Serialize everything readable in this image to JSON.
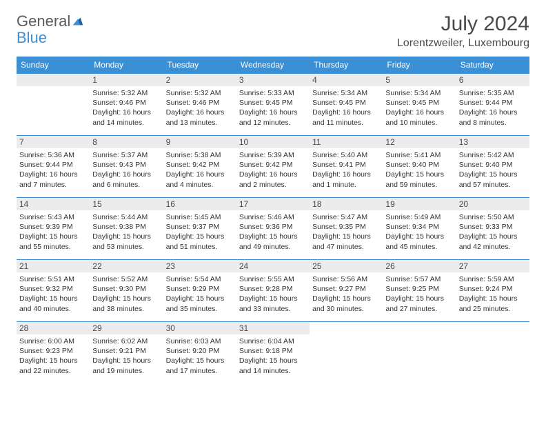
{
  "logo": {
    "text1": "General",
    "text2": "Blue"
  },
  "title": "July 2024",
  "location": "Lorentzweiler, Luxembourg",
  "colors": {
    "header_bg": "#3b8fd4",
    "header_text": "#ffffff",
    "daynum_bg": "#ececec",
    "border": "#3b8fd4",
    "body_text": "#333333",
    "title_text": "#4a4a4a"
  },
  "day_headers": [
    "Sunday",
    "Monday",
    "Tuesday",
    "Wednesday",
    "Thursday",
    "Friday",
    "Saturday"
  ],
  "weeks": [
    [
      {
        "num": "",
        "sunrise": "",
        "sunset": "",
        "daylight": ""
      },
      {
        "num": "1",
        "sunrise": "Sunrise: 5:32 AM",
        "sunset": "Sunset: 9:46 PM",
        "daylight": "Daylight: 16 hours and 14 minutes."
      },
      {
        "num": "2",
        "sunrise": "Sunrise: 5:32 AM",
        "sunset": "Sunset: 9:46 PM",
        "daylight": "Daylight: 16 hours and 13 minutes."
      },
      {
        "num": "3",
        "sunrise": "Sunrise: 5:33 AM",
        "sunset": "Sunset: 9:45 PM",
        "daylight": "Daylight: 16 hours and 12 minutes."
      },
      {
        "num": "4",
        "sunrise": "Sunrise: 5:34 AM",
        "sunset": "Sunset: 9:45 PM",
        "daylight": "Daylight: 16 hours and 11 minutes."
      },
      {
        "num": "5",
        "sunrise": "Sunrise: 5:34 AM",
        "sunset": "Sunset: 9:45 PM",
        "daylight": "Daylight: 16 hours and 10 minutes."
      },
      {
        "num": "6",
        "sunrise": "Sunrise: 5:35 AM",
        "sunset": "Sunset: 9:44 PM",
        "daylight": "Daylight: 16 hours and 8 minutes."
      }
    ],
    [
      {
        "num": "7",
        "sunrise": "Sunrise: 5:36 AM",
        "sunset": "Sunset: 9:44 PM",
        "daylight": "Daylight: 16 hours and 7 minutes."
      },
      {
        "num": "8",
        "sunrise": "Sunrise: 5:37 AM",
        "sunset": "Sunset: 9:43 PM",
        "daylight": "Daylight: 16 hours and 6 minutes."
      },
      {
        "num": "9",
        "sunrise": "Sunrise: 5:38 AM",
        "sunset": "Sunset: 9:42 PM",
        "daylight": "Daylight: 16 hours and 4 minutes."
      },
      {
        "num": "10",
        "sunrise": "Sunrise: 5:39 AM",
        "sunset": "Sunset: 9:42 PM",
        "daylight": "Daylight: 16 hours and 2 minutes."
      },
      {
        "num": "11",
        "sunrise": "Sunrise: 5:40 AM",
        "sunset": "Sunset: 9:41 PM",
        "daylight": "Daylight: 16 hours and 1 minute."
      },
      {
        "num": "12",
        "sunrise": "Sunrise: 5:41 AM",
        "sunset": "Sunset: 9:40 PM",
        "daylight": "Daylight: 15 hours and 59 minutes."
      },
      {
        "num": "13",
        "sunrise": "Sunrise: 5:42 AM",
        "sunset": "Sunset: 9:40 PM",
        "daylight": "Daylight: 15 hours and 57 minutes."
      }
    ],
    [
      {
        "num": "14",
        "sunrise": "Sunrise: 5:43 AM",
        "sunset": "Sunset: 9:39 PM",
        "daylight": "Daylight: 15 hours and 55 minutes."
      },
      {
        "num": "15",
        "sunrise": "Sunrise: 5:44 AM",
        "sunset": "Sunset: 9:38 PM",
        "daylight": "Daylight: 15 hours and 53 minutes."
      },
      {
        "num": "16",
        "sunrise": "Sunrise: 5:45 AM",
        "sunset": "Sunset: 9:37 PM",
        "daylight": "Daylight: 15 hours and 51 minutes."
      },
      {
        "num": "17",
        "sunrise": "Sunrise: 5:46 AM",
        "sunset": "Sunset: 9:36 PM",
        "daylight": "Daylight: 15 hours and 49 minutes."
      },
      {
        "num": "18",
        "sunrise": "Sunrise: 5:47 AM",
        "sunset": "Sunset: 9:35 PM",
        "daylight": "Daylight: 15 hours and 47 minutes."
      },
      {
        "num": "19",
        "sunrise": "Sunrise: 5:49 AM",
        "sunset": "Sunset: 9:34 PM",
        "daylight": "Daylight: 15 hours and 45 minutes."
      },
      {
        "num": "20",
        "sunrise": "Sunrise: 5:50 AM",
        "sunset": "Sunset: 9:33 PM",
        "daylight": "Daylight: 15 hours and 42 minutes."
      }
    ],
    [
      {
        "num": "21",
        "sunrise": "Sunrise: 5:51 AM",
        "sunset": "Sunset: 9:32 PM",
        "daylight": "Daylight: 15 hours and 40 minutes."
      },
      {
        "num": "22",
        "sunrise": "Sunrise: 5:52 AM",
        "sunset": "Sunset: 9:30 PM",
        "daylight": "Daylight: 15 hours and 38 minutes."
      },
      {
        "num": "23",
        "sunrise": "Sunrise: 5:54 AM",
        "sunset": "Sunset: 9:29 PM",
        "daylight": "Daylight: 15 hours and 35 minutes."
      },
      {
        "num": "24",
        "sunrise": "Sunrise: 5:55 AM",
        "sunset": "Sunset: 9:28 PM",
        "daylight": "Daylight: 15 hours and 33 minutes."
      },
      {
        "num": "25",
        "sunrise": "Sunrise: 5:56 AM",
        "sunset": "Sunset: 9:27 PM",
        "daylight": "Daylight: 15 hours and 30 minutes."
      },
      {
        "num": "26",
        "sunrise": "Sunrise: 5:57 AM",
        "sunset": "Sunset: 9:25 PM",
        "daylight": "Daylight: 15 hours and 27 minutes."
      },
      {
        "num": "27",
        "sunrise": "Sunrise: 5:59 AM",
        "sunset": "Sunset: 9:24 PM",
        "daylight": "Daylight: 15 hours and 25 minutes."
      }
    ],
    [
      {
        "num": "28",
        "sunrise": "Sunrise: 6:00 AM",
        "sunset": "Sunset: 9:23 PM",
        "daylight": "Daylight: 15 hours and 22 minutes."
      },
      {
        "num": "29",
        "sunrise": "Sunrise: 6:02 AM",
        "sunset": "Sunset: 9:21 PM",
        "daylight": "Daylight: 15 hours and 19 minutes."
      },
      {
        "num": "30",
        "sunrise": "Sunrise: 6:03 AM",
        "sunset": "Sunset: 9:20 PM",
        "daylight": "Daylight: 15 hours and 17 minutes."
      },
      {
        "num": "31",
        "sunrise": "Sunrise: 6:04 AM",
        "sunset": "Sunset: 9:18 PM",
        "daylight": "Daylight: 15 hours and 14 minutes."
      },
      {
        "num": "",
        "sunrise": "",
        "sunset": "",
        "daylight": ""
      },
      {
        "num": "",
        "sunrise": "",
        "sunset": "",
        "daylight": ""
      },
      {
        "num": "",
        "sunrise": "",
        "sunset": "",
        "daylight": ""
      }
    ]
  ]
}
